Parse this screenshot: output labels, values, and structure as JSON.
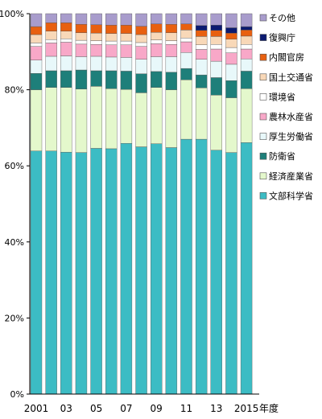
{
  "chart_data": {
    "type": "bar",
    "stacked": true,
    "percent": true,
    "xunit": "年度",
    "categories": [
      "2001",
      "2002",
      "2003",
      "2004",
      "2005",
      "2006",
      "2007",
      "2008",
      "2009",
      "2010",
      "2011",
      "2012",
      "2013",
      "2014",
      "2015"
    ],
    "xtick_labels": [
      "2001",
      "",
      "03",
      "",
      "05",
      "",
      "07",
      "",
      "09",
      "",
      "11",
      "",
      "13",
      "",
      "2015"
    ],
    "yticks": [
      0,
      20,
      40,
      60,
      80,
      100
    ],
    "ytick_labels": [
      "0%",
      "20%",
      "40%",
      "60%",
      "80%",
      "100%"
    ],
    "ylim": [
      0,
      100
    ],
    "grid": false,
    "legend_position": "right",
    "series": [
      {
        "name": "文部科学省",
        "color": "#3cbcc4",
        "values": [
          63.9,
          63.9,
          63.6,
          63.5,
          64.6,
          64.5,
          65.9,
          65.0,
          65.8,
          64.8,
          67.0,
          67.0,
          64.1,
          63.5,
          66.1
        ]
      },
      {
        "name": "経済産業省",
        "color": "#e4f8cc",
        "values": [
          16.1,
          16.7,
          17.0,
          16.7,
          16.3,
          15.8,
          14.2,
          14.2,
          14.8,
          15.2,
          15.6,
          13.5,
          14.5,
          14.4,
          14.2
        ]
      },
      {
        "name": "防衛省",
        "color": "#1e7f7a",
        "values": [
          4.3,
          4.4,
          4.4,
          5.0,
          4.1,
          4.7,
          4.8,
          5.0,
          4.2,
          4.6,
          3.0,
          3.4,
          4.6,
          4.5,
          4.6
        ]
      },
      {
        "name": "厚生労働省",
        "color": "#e8f8fa",
        "values": [
          3.5,
          3.8,
          3.9,
          3.5,
          3.8,
          3.6,
          3.6,
          3.8,
          3.9,
          4.1,
          4.2,
          4.1,
          4.3,
          4.3,
          3.2
        ]
      },
      {
        "name": "農林水産省",
        "color": "#f8a8c8",
        "values": [
          3.6,
          3.5,
          3.6,
          3.3,
          3.1,
          3.2,
          3.3,
          3.4,
          3.4,
          3.2,
          2.8,
          2.6,
          3.2,
          3.0,
          2.6
        ]
      },
      {
        "name": "環境省",
        "color": "#ffffff",
        "values": [
          0.9,
          0.9,
          0.9,
          1.0,
          1.0,
          1.0,
          1.0,
          1.0,
          1.0,
          1.0,
          1.0,
          1.2,
          1.2,
          1.4,
          1.2
        ]
      },
      {
        "name": "国土交通省",
        "color": "#f8d8b8",
        "values": [
          2.2,
          2.2,
          2.0,
          2.0,
          2.0,
          2.0,
          2.0,
          2.1,
          2.0,
          2.1,
          2.1,
          2.2,
          2.1,
          2.2,
          2.2
        ]
      },
      {
        "name": "内閣官房",
        "color": "#e86010",
        "values": [
          2.1,
          2.2,
          2.2,
          2.2,
          2.2,
          2.2,
          2.2,
          2.2,
          2.2,
          2.2,
          1.6,
          1.6,
          1.6,
          1.6,
          1.6
        ]
      },
      {
        "name": "復興庁",
        "color": "#0b1a70",
        "values": [
          0,
          0,
          0,
          0,
          0,
          0,
          0,
          0,
          0,
          0,
          0,
          1.3,
          1.4,
          1.4,
          0.9
        ]
      },
      {
        "name": "その他",
        "color": "#a89ccc",
        "values": [
          3.4,
          2.4,
          2.4,
          2.8,
          2.9,
          3.0,
          3.0,
          3.3,
          2.7,
          2.8,
          2.7,
          3.1,
          3.0,
          3.7,
          3.4
        ]
      }
    ]
  }
}
